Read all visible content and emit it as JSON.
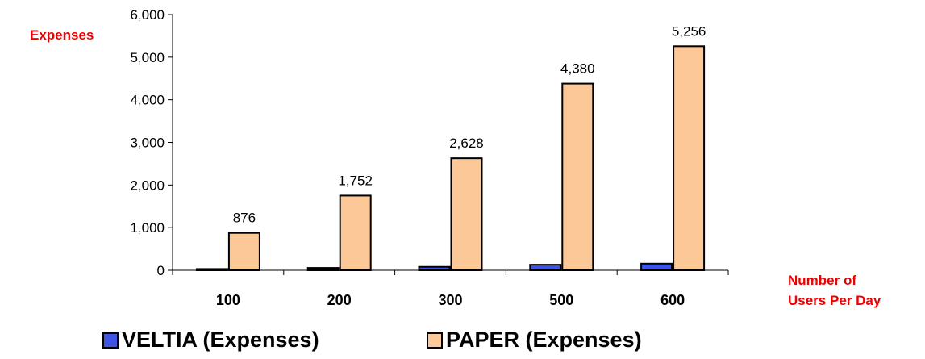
{
  "chart_data": {
    "type": "bar",
    "ylabel": "Expenses",
    "xlabel_line1": "Number of",
    "xlabel_line2": "Users Per Day",
    "categories": [
      "100",
      "200",
      "300",
      "500",
      "600"
    ],
    "series": [
      {
        "name": "VELTIA (Expenses)",
        "color": "#3c55e6",
        "values": [
          30,
          55,
          80,
          130,
          155
        ],
        "labels": [
          "",
          "",
          "",
          "",
          ""
        ]
      },
      {
        "name": "PAPER (Expenses)",
        "color": "#fcc898",
        "values": [
          876,
          1752,
          2628,
          4380,
          5256
        ],
        "labels": [
          "876",
          "1,752",
          "2,628",
          "4,380",
          "5,256"
        ]
      }
    ],
    "ylim": [
      0,
      6000
    ],
    "yticks": [
      0,
      1000,
      2000,
      3000,
      4000,
      5000,
      6000
    ],
    "ytick_labels": [
      "0",
      "1,000",
      "2,000",
      "3,000",
      "4,000",
      "5,000",
      "6,000"
    ],
    "grid": false,
    "legend_position": "bottom"
  }
}
